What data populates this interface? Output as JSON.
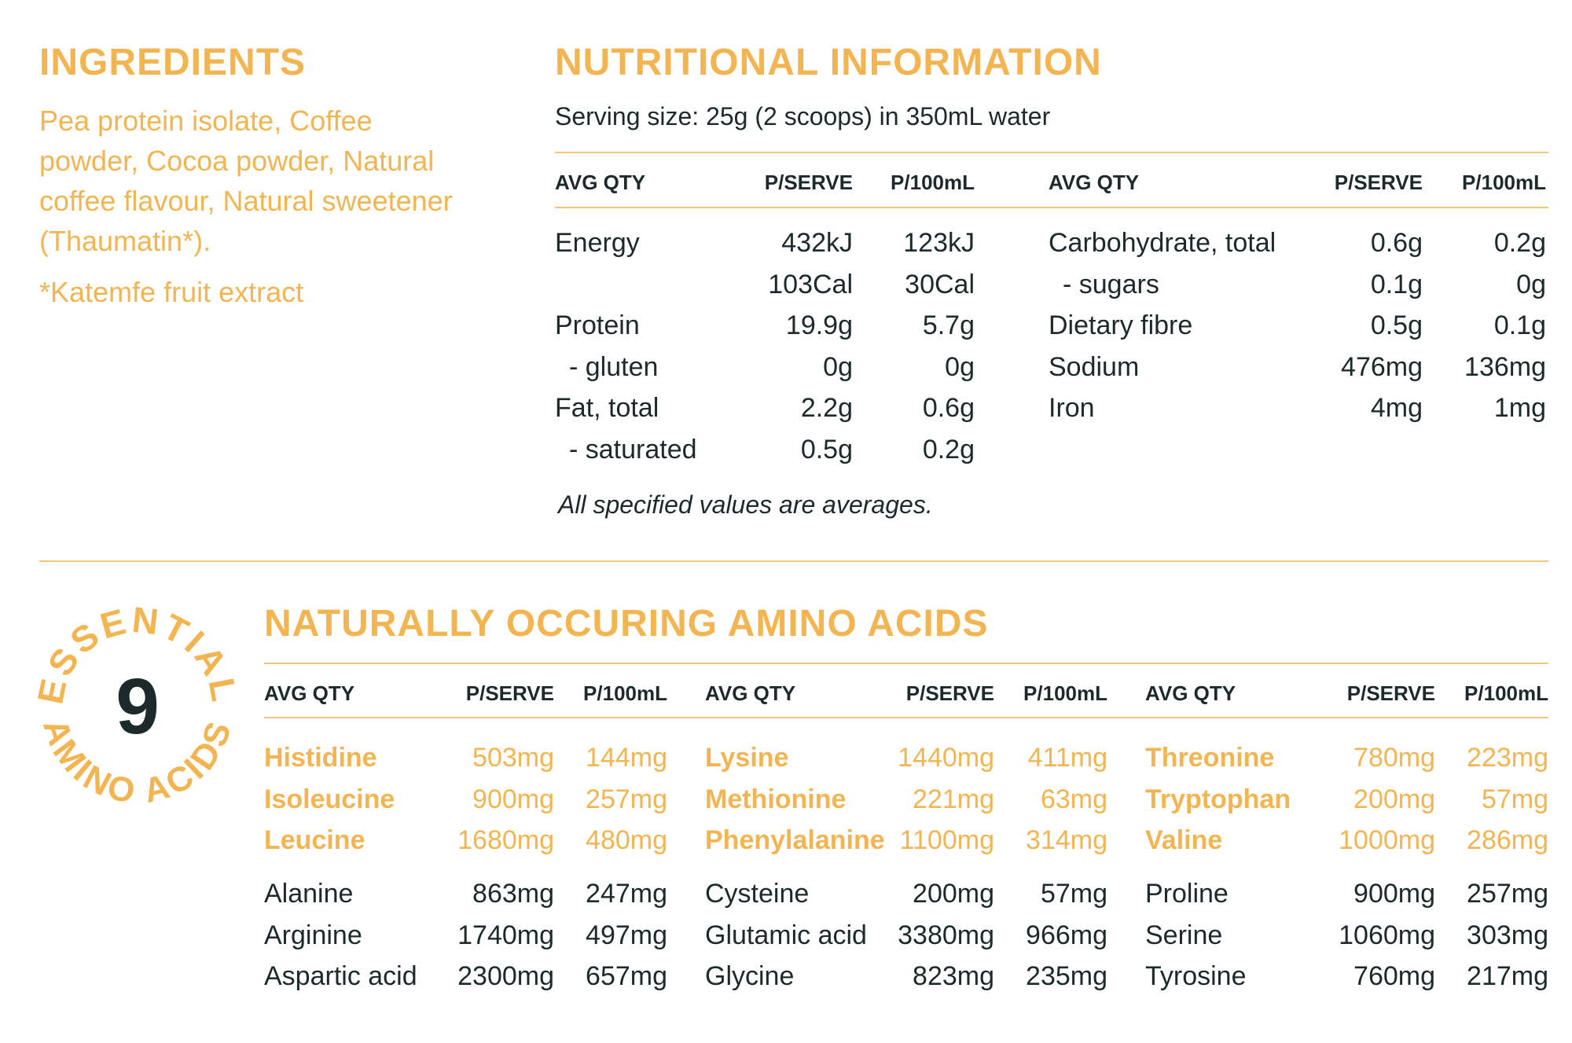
{
  "ingredients": {
    "title": "INGREDIENTS",
    "lines": [
      "Pea protein isolate, Coffee",
      "powder, Cocoa powder, Natural",
      "coffee flavour, Natural sweetener",
      "(Thaumatin*)."
    ],
    "note": "*Katemfe fruit extract"
  },
  "nutrition": {
    "title": "NUTRITIONAL INFORMATION",
    "serving": "Serving size: 25g (2 scoops) in 350mL water",
    "headers": {
      "qty": "AVG QTY",
      "serve": "P/SERVE",
      "per100": "P/100mL"
    },
    "left": [
      {
        "name": "Energy",
        "serve": "432kJ",
        "per100": "123kJ",
        "sub": false
      },
      {
        "name": "",
        "serve": "103Cal",
        "per100": "30Cal",
        "sub": false
      },
      {
        "name": "Protein",
        "serve": "19.9g",
        "per100": "5.7g",
        "sub": false
      },
      {
        "name": "- gluten",
        "serve": "0g",
        "per100": "0g",
        "sub": true
      },
      {
        "name": "Fat, total",
        "serve": "2.2g",
        "per100": "0.6g",
        "sub": false
      },
      {
        "name": "- saturated",
        "serve": "0.5g",
        "per100": "0.2g",
        "sub": true
      }
    ],
    "right": [
      {
        "name": "Carbohydrate, total",
        "serve": "0.6g",
        "per100": "0.2g",
        "sub": false
      },
      {
        "name": "- sugars",
        "serve": "0.1g",
        "per100": "0g",
        "sub": true
      },
      {
        "name": "Dietary fibre",
        "serve": "0.5g",
        "per100": "0.1g",
        "sub": false
      },
      {
        "name": "Sodium",
        "serve": "476mg",
        "per100": "136mg",
        "sub": false
      },
      {
        "name": "Iron",
        "serve": "4mg",
        "per100": "1mg",
        "sub": false
      }
    ],
    "footnote": "All specified values are averages."
  },
  "badge": {
    "number": "9",
    "top_text": "ESSENTIAL",
    "bottom_text": "AMINO ACIDS"
  },
  "amino": {
    "title": "NATURALLY OCCURING AMINO ACIDS",
    "headers": {
      "qty": "AVG QTY",
      "serve": "P/SERVE",
      "per100": "P/100mL"
    },
    "columns": [
      {
        "essential": [
          {
            "name": "Histidine",
            "serve": "503mg",
            "per100": "144mg"
          },
          {
            "name": "Isoleucine",
            "serve": "900mg",
            "per100": "257mg"
          },
          {
            "name": "Leucine",
            "serve": "1680mg",
            "per100": "480mg"
          }
        ],
        "other": [
          {
            "name": "Alanine",
            "serve": "863mg",
            "per100": "247mg"
          },
          {
            "name": "Arginine",
            "serve": "1740mg",
            "per100": "497mg"
          },
          {
            "name": "Aspartic acid",
            "serve": "2300mg",
            "per100": "657mg"
          }
        ]
      },
      {
        "essential": [
          {
            "name": "Lysine",
            "serve": "1440mg",
            "per100": "411mg"
          },
          {
            "name": "Methionine",
            "serve": "221mg",
            "per100": "63mg"
          },
          {
            "name": "Phenylalanine",
            "serve": "1100mg",
            "per100": "314mg"
          }
        ],
        "other": [
          {
            "name": "Cysteine",
            "serve": "200mg",
            "per100": "57mg"
          },
          {
            "name": "Glutamic acid",
            "serve": "3380mg",
            "per100": "966mg"
          },
          {
            "name": "Glycine",
            "serve": "823mg",
            "per100": "235mg"
          }
        ]
      },
      {
        "essential": [
          {
            "name": "Threonine",
            "serve": "780mg",
            "per100": "223mg"
          },
          {
            "name": "Tryptophan",
            "serve": "200mg",
            "per100": "57mg"
          },
          {
            "name": "Valine",
            "serve": "1000mg",
            "per100": "286mg"
          }
        ],
        "other": [
          {
            "name": "Proline",
            "serve": "900mg",
            "per100": "257mg"
          },
          {
            "name": "Serine",
            "serve": "1060mg",
            "per100": "303mg"
          },
          {
            "name": "Tyrosine",
            "serve": "760mg",
            "per100": "217mg"
          }
        ]
      }
    ]
  },
  "colors": {
    "accent": "#f2b552",
    "text": "#1c2a2b",
    "rule": "#f2c77a"
  }
}
